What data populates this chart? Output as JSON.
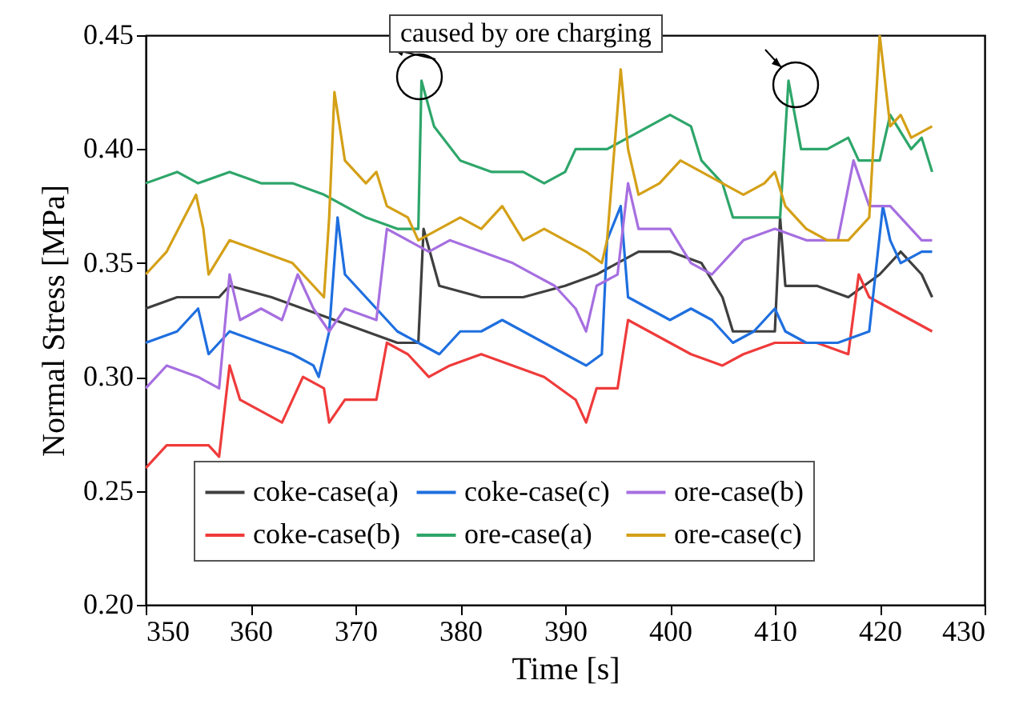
{
  "chart_data": {
    "type": "line",
    "xlabel": "Time [s]",
    "ylabel": "Normal Stress [MPa]",
    "xlim": [
      350,
      430
    ],
    "ylim": [
      0.2,
      0.45
    ],
    "xticks": [
      350,
      360,
      370,
      380,
      390,
      400,
      410,
      420,
      430
    ],
    "yticks": [
      {
        "value": 0.2,
        "label": "0.20"
      },
      {
        "value": 0.25,
        "label": "0.25"
      },
      {
        "value": 0.3,
        "label": "0.30"
      },
      {
        "value": 0.35,
        "label": "0.35"
      },
      {
        "value": 0.4,
        "label": "0.40"
      },
      {
        "value": 0.45,
        "label": "0.45"
      }
    ],
    "legend": "bottom",
    "annotations": [
      "caused by ore charging"
    ],
    "series": [
      {
        "name": "coke-case(a)",
        "color": "#3f3f3f",
        "x": [
          350,
          353,
          357,
          358,
          362,
          365,
          368,
          371,
          374,
          376,
          376.5,
          378,
          382,
          386,
          390,
          393,
          397,
          400,
          403,
          405,
          406,
          410,
          410.5,
          411,
          414,
          417,
          420,
          422,
          424,
          425
        ],
        "values": [
          0.33,
          0.335,
          0.335,
          0.34,
          0.335,
          0.33,
          0.325,
          0.32,
          0.315,
          0.315,
          0.365,
          0.34,
          0.335,
          0.335,
          0.34,
          0.345,
          0.355,
          0.355,
          0.35,
          0.335,
          0.32,
          0.32,
          0.37,
          0.34,
          0.34,
          0.335,
          0.345,
          0.355,
          0.345,
          0.335
        ]
      },
      {
        "name": "coke-case(b)",
        "color": "#ef3b3b",
        "x": [
          350,
          352,
          356,
          357,
          358,
          359,
          361,
          363,
          364,
          365,
          367,
          367.5,
          369,
          372,
          373,
          375,
          377,
          379,
          382,
          385,
          388,
          391,
          392,
          393,
          395,
          396,
          398,
          400,
          402,
          405,
          407,
          410,
          414,
          417,
          418,
          419,
          421,
          423,
          425
        ],
        "values": [
          0.26,
          0.27,
          0.27,
          0.265,
          0.305,
          0.29,
          0.285,
          0.28,
          0.29,
          0.3,
          0.295,
          0.28,
          0.29,
          0.29,
          0.315,
          0.31,
          0.3,
          0.305,
          0.31,
          0.305,
          0.3,
          0.29,
          0.28,
          0.295,
          0.295,
          0.325,
          0.32,
          0.315,
          0.31,
          0.305,
          0.31,
          0.315,
          0.315,
          0.31,
          0.345,
          0.335,
          0.33,
          0.325,
          0.32
        ]
      },
      {
        "name": "coke-case(c)",
        "color": "#1f6fdf",
        "x": [
          350,
          353,
          355,
          356,
          358,
          361,
          364,
          366,
          366.5,
          367.5,
          368.3,
          369,
          371,
          372,
          374,
          376,
          378,
          380,
          382,
          384,
          386,
          388,
          390,
          392,
          393.5,
          394,
          395.3,
          396,
          398,
          400,
          402,
          404,
          406,
          408,
          410,
          411,
          413,
          416,
          419,
          420.3,
          421,
          422,
          424,
          425
        ],
        "values": [
          0.315,
          0.32,
          0.33,
          0.31,
          0.32,
          0.315,
          0.31,
          0.305,
          0.3,
          0.32,
          0.37,
          0.345,
          0.335,
          0.33,
          0.32,
          0.315,
          0.31,
          0.32,
          0.32,
          0.325,
          0.32,
          0.315,
          0.31,
          0.305,
          0.31,
          0.36,
          0.375,
          0.335,
          0.33,
          0.325,
          0.33,
          0.325,
          0.315,
          0.32,
          0.33,
          0.32,
          0.315,
          0.315,
          0.32,
          0.375,
          0.36,
          0.35,
          0.355,
          0.355
        ]
      },
      {
        "name": "ore-case(a)",
        "color": "#2ea66a",
        "x": [
          350,
          353,
          355,
          358,
          361,
          364,
          367,
          369,
          371,
          374,
          376,
          376.3,
          377.5,
          380,
          383,
          386,
          388,
          390,
          391,
          394,
          396,
          398,
          400,
          402,
          403,
          405,
          406,
          409,
          410.5,
          411.3,
          412.5,
          415,
          417,
          418,
          420,
          421,
          423,
          424,
          425
        ],
        "values": [
          0.385,
          0.39,
          0.385,
          0.39,
          0.385,
          0.385,
          0.38,
          0.375,
          0.37,
          0.365,
          0.365,
          0.43,
          0.41,
          0.395,
          0.39,
          0.39,
          0.385,
          0.39,
          0.4,
          0.4,
          0.405,
          0.41,
          0.415,
          0.41,
          0.395,
          0.385,
          0.37,
          0.37,
          0.37,
          0.43,
          0.4,
          0.4,
          0.405,
          0.395,
          0.395,
          0.415,
          0.4,
          0.405,
          0.39
        ]
      },
      {
        "name": "ore-case(b)",
        "color": "#a66fe0",
        "x": [
          350,
          352,
          355,
          357,
          358,
          359,
          361,
          363,
          364.5,
          366,
          367.5,
          369,
          372,
          373,
          375,
          377,
          379,
          382,
          385,
          387,
          389,
          391,
          392,
          393,
          395,
          396,
          397,
          400,
          402,
          404,
          407,
          410,
          413,
          416,
          417.5,
          419,
          421,
          422,
          424,
          425
        ],
        "values": [
          0.295,
          0.305,
          0.3,
          0.295,
          0.345,
          0.325,
          0.33,
          0.325,
          0.345,
          0.33,
          0.32,
          0.33,
          0.325,
          0.365,
          0.36,
          0.355,
          0.36,
          0.355,
          0.35,
          0.345,
          0.34,
          0.33,
          0.32,
          0.34,
          0.345,
          0.385,
          0.365,
          0.365,
          0.35,
          0.345,
          0.36,
          0.365,
          0.36,
          0.36,
          0.395,
          0.375,
          0.375,
          0.37,
          0.36,
          0.36
        ]
      },
      {
        "name": "ore-case(c)",
        "color": "#d4a017",
        "x": [
          350,
          352,
          354.8,
          355.5,
          356,
          358,
          361,
          364,
          366,
          367,
          367.5,
          368,
          369,
          371,
          372,
          373,
          375,
          376,
          378,
          380,
          382,
          384,
          386,
          388,
          390,
          392,
          393.5,
          394,
          395.3,
          396,
          397,
          399,
          401,
          403,
          405,
          407,
          409,
          410,
          411,
          413,
          415,
          417,
          419,
          420,
          421,
          422,
          423,
          425
        ],
        "values": [
          0.345,
          0.355,
          0.38,
          0.365,
          0.345,
          0.36,
          0.355,
          0.35,
          0.34,
          0.335,
          0.37,
          0.425,
          0.395,
          0.385,
          0.39,
          0.375,
          0.37,
          0.36,
          0.365,
          0.37,
          0.365,
          0.375,
          0.36,
          0.365,
          0.36,
          0.355,
          0.35,
          0.36,
          0.435,
          0.4,
          0.38,
          0.385,
          0.395,
          0.39,
          0.385,
          0.38,
          0.385,
          0.39,
          0.375,
          0.365,
          0.36,
          0.36,
          0.37,
          0.45,
          0.41,
          0.415,
          0.405,
          0.41
        ]
      }
    ]
  }
}
